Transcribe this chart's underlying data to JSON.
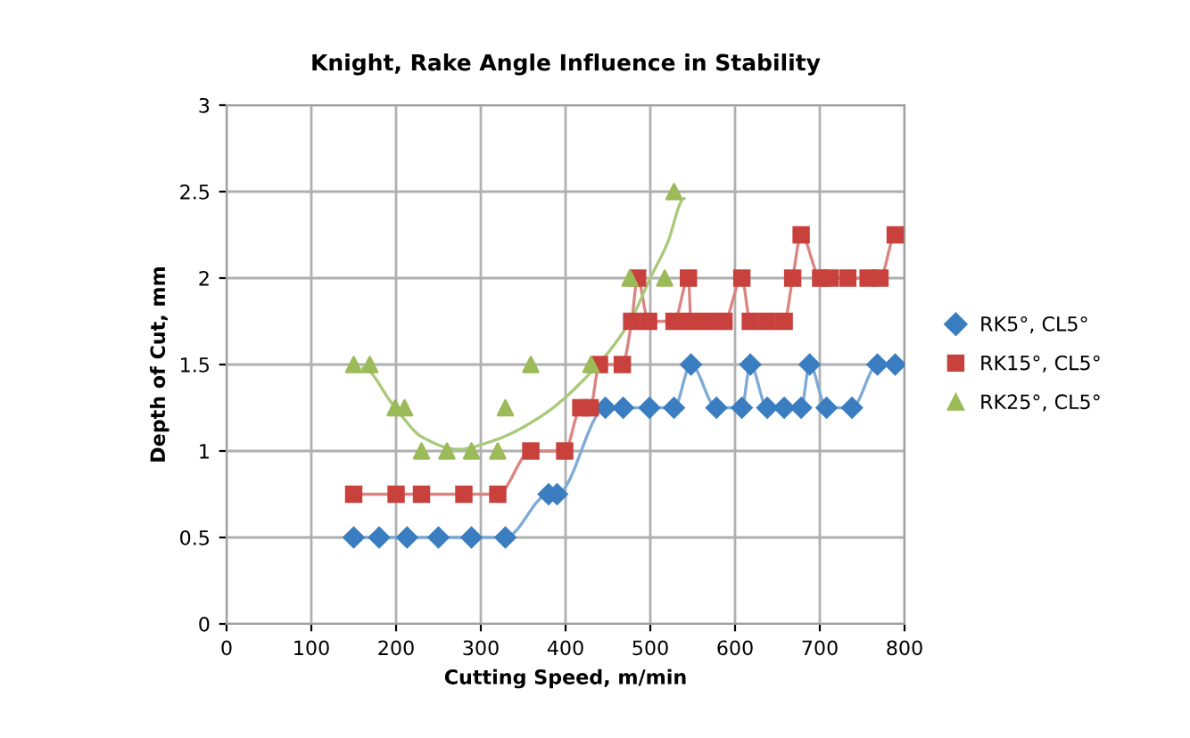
{
  "chart_data": {
    "type": "line",
    "title": "Knight, Rake Angle Influence in Stability",
    "xlabel": "Cutting Speed, m/min",
    "ylabel": "Depth of Cut, mm",
    "xlim": [
      0,
      800
    ],
    "xticks": [
      0,
      100,
      200,
      300,
      400,
      500,
      600,
      700,
      800
    ],
    "ylim": [
      0,
      3
    ],
    "yticks": [
      0,
      0.5,
      1,
      1.5,
      2,
      2.5,
      3
    ],
    "grid": true,
    "legend": "right",
    "line_style": "solid",
    "series": [
      {
        "name": "RK5°, CL5°",
        "color": "#3a7dc0",
        "marker": "diamond",
        "x": [
          150,
          180,
          213,
          250,
          289,
          329,
          380,
          390,
          447,
          468,
          499,
          528,
          548,
          578,
          608,
          618,
          638,
          658,
          678,
          688,
          708,
          738,
          768,
          789
        ],
        "values": [
          0.5,
          0.5,
          0.5,
          0.5,
          0.5,
          0.5,
          0.75,
          0.75,
          1.25,
          1.25,
          1.25,
          1.25,
          1.5,
          1.25,
          1.25,
          1.5,
          1.25,
          1.25,
          1.25,
          1.5,
          1.25,
          1.25,
          1.5,
          1.5
        ]
      },
      {
        "name": "RK15°, CL5°",
        "color": "#c8413d",
        "marker": "square",
        "x": [
          150,
          200,
          230,
          280,
          320,
          359,
          399,
          418,
          429,
          440,
          467,
          478,
          485,
          498,
          528,
          545,
          548,
          568,
          587,
          608,
          618,
          638,
          658,
          668,
          678,
          701,
          712,
          733,
          757,
          771,
          789
        ],
        "values": [
          0.75,
          0.75,
          0.75,
          0.75,
          0.75,
          1.0,
          1.0,
          1.25,
          1.25,
          1.5,
          1.5,
          1.75,
          2.0,
          1.75,
          1.75,
          2.0,
          1.75,
          1.75,
          1.75,
          2.0,
          1.75,
          1.75,
          1.75,
          2.0,
          2.25,
          2.0,
          2.0,
          2.0,
          2.0,
          2.0,
          2.25
        ]
      },
      {
        "name": "RK25°, CL5°",
        "type": "scatter",
        "color": "#9bbb59",
        "marker": "triangle",
        "x": [
          150,
          169,
          199,
          210,
          230,
          260,
          289,
          320,
          329,
          359,
          430,
          476,
          517,
          528
        ],
        "values": [
          1.5,
          1.5,
          1.25,
          1.25,
          1.0,
          1.0,
          1.0,
          1.0,
          1.25,
          1.5,
          1.5,
          2.0,
          2.0,
          2.5
        ]
      },
      {
        "color": "#a9c97a",
        "marker": "none",
        "x": [
          161,
          196,
          231,
          273,
          315,
          371,
          427,
          476,
          500,
          520,
          540
        ],
        "values": [
          1.48,
          1.27,
          1.08,
          1.01,
          1.06,
          1.2,
          1.44,
          1.75,
          2.0,
          2.2,
          2.46
        ]
      }
    ]
  }
}
